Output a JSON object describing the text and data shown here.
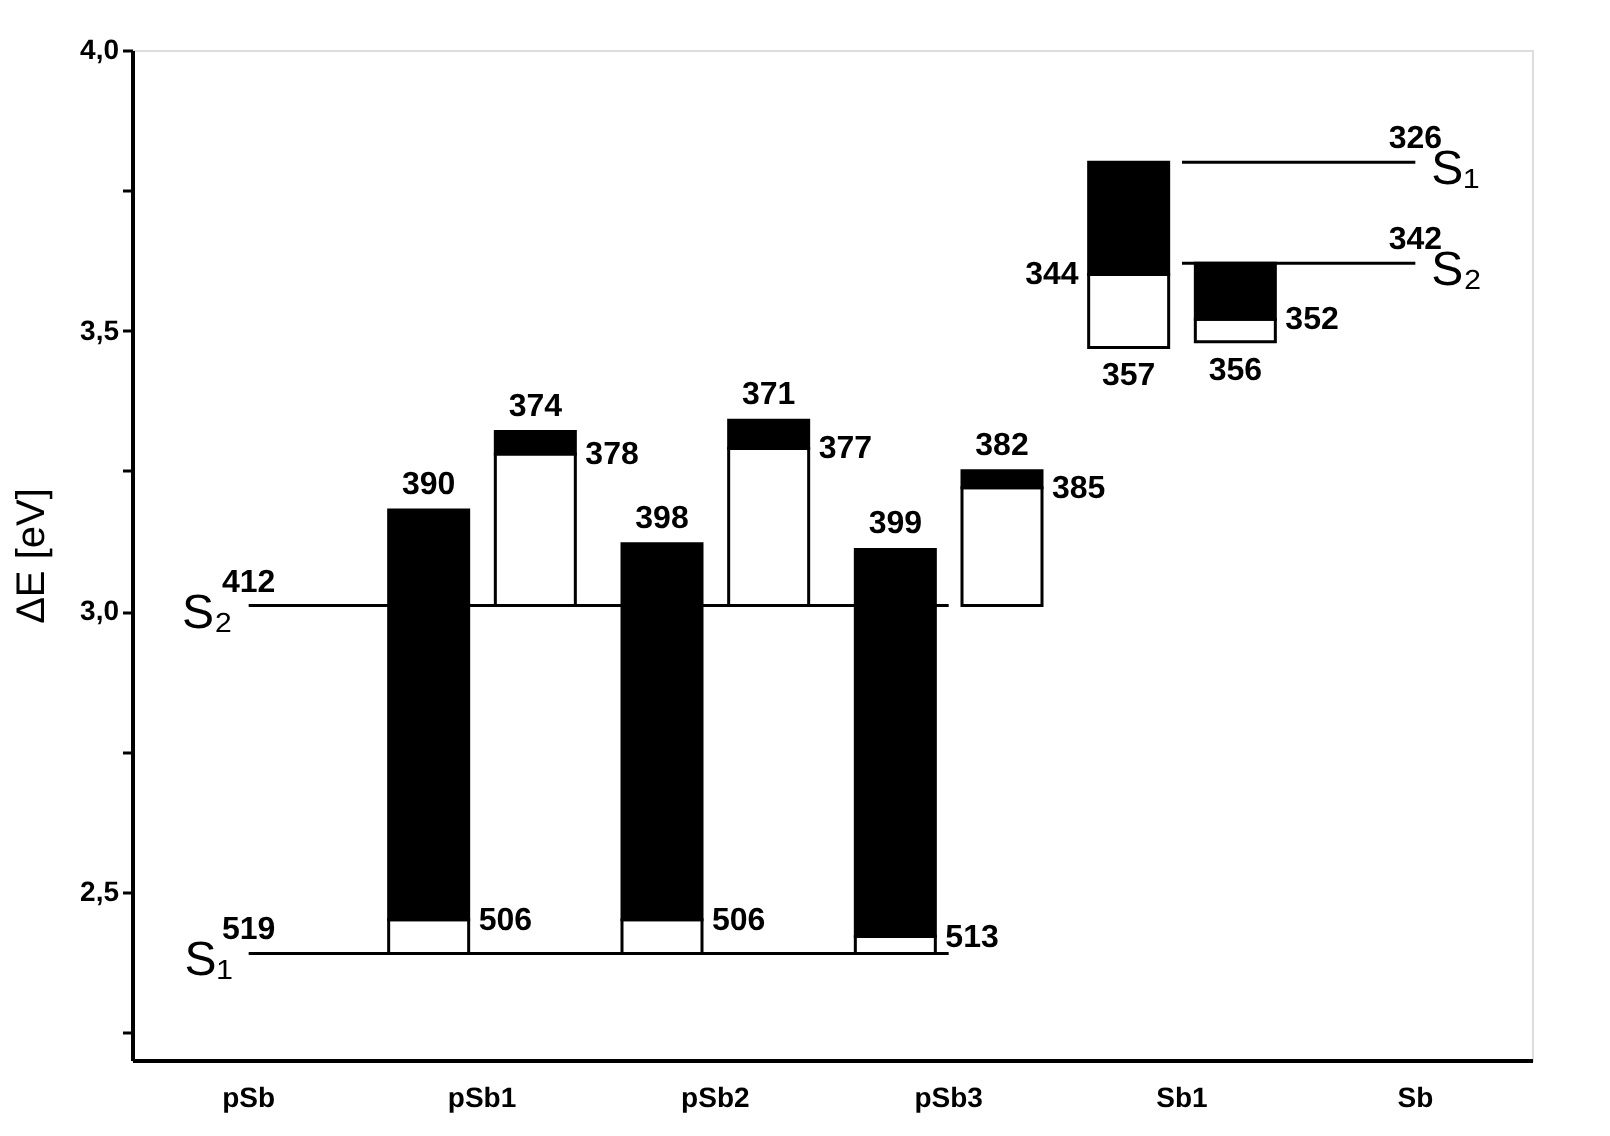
{
  "chart_data": {
    "type": "bar",
    "ylabel": "ΔE [eV]",
    "categories": [
      "pSb",
      "pSb1",
      "pSb2",
      "pSb3",
      "Sb1",
      "Sb"
    ],
    "ylim": [
      2.2,
      4.0
    ],
    "yticks": [
      {
        "value": 2.25,
        "label": null
      },
      {
        "value": 2.5,
        "label": "2,5"
      },
      {
        "value": 2.75,
        "label": null
      },
      {
        "value": 3.0,
        "label": "3,0"
      },
      {
        "value": 3.25,
        "label": null
      },
      {
        "value": 3.5,
        "label": "3,5"
      },
      {
        "value": 3.75,
        "label": null
      },
      {
        "value": 4.0,
        "label": "4,0"
      }
    ],
    "grid": false,
    "series": [
      {
        "color": "#ffffff",
        "base": [
          null,
          2.39,
          2.39,
          2.39,
          3.47,
          null
        ],
        "values": [
          null,
          0.06,
          0.06,
          0.03,
          0.13,
          null
        ]
      },
      {
        "color": "#000000",
        "base": [
          null,
          2.45,
          2.45,
          2.42,
          3.6,
          null
        ],
        "values": [
          null,
          0.73,
          0.67,
          0.69,
          0.2,
          null
        ]
      },
      {
        "color": "#ffffff",
        "base": [
          null,
          3.01,
          3.01,
          3.01,
          3.48,
          null
        ],
        "values": [
          null,
          0.27,
          0.28,
          0.21,
          0.04,
          null
        ]
      },
      {
        "color": "#000000",
        "base": [
          null,
          3.28,
          3.29,
          3.22,
          3.52,
          null
        ],
        "values": [
          null,
          0.04,
          0.05,
          0.03,
          0.1,
          null
        ]
      },
      {
        "type": "line",
        "name": "S₂",
        "color": "#000000",
        "values": [
          3.01,
          3.01,
          3.01,
          3.01,
          null,
          null
        ]
      },
      {
        "type": "line",
        "name": "S₁",
        "color": "#000000",
        "values": [
          2.39,
          2.39,
          2.39,
          2.39,
          null,
          null
        ]
      },
      {
        "type": "line",
        "name": "S₁",
        "color": "#000000",
        "values": [
          null,
          null,
          null,
          null,
          3.8,
          3.8
        ]
      },
      {
        "type": "line",
        "name": "S₂",
        "color": "#000000",
        "values": [
          null,
          null,
          null,
          null,
          3.62,
          3.62
        ]
      }
    ],
    "annotations": [
      "412",
      "519",
      "390",
      "506",
      "374",
      "378",
      "398",
      "506",
      "371",
      "377",
      "399",
      "513",
      "382",
      "385",
      "344",
      "357",
      "356",
      "352",
      "326",
      "342"
    ]
  }
}
